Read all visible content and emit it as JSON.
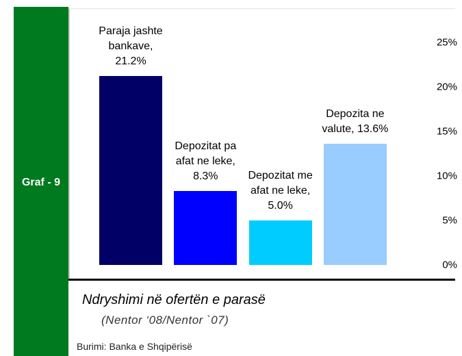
{
  "chart_data": {
    "type": "bar",
    "side_label": "Graf - 9",
    "title": "Ndryshimi në ofertën e parasë",
    "subtitle": "(Nentor ‘08/Nentor `07)",
    "source": "Burimi: Banka e Shqipërisë",
    "categories": [
      "Paraja jashte bankave,",
      "Depozitat pa afat ne leke,",
      "Depozitat me afat ne leke,",
      "Depozita ne valute,"
    ],
    "values": [
      21.2,
      8.3,
      5.0,
      13.6
    ],
    "value_labels": [
      "21.2%",
      "8.3%",
      "5.0%",
      "13.6%"
    ],
    "colors": [
      "#000066",
      "#0000ff",
      "#00ccff",
      "#99ccff"
    ],
    "ylim": [
      0,
      25
    ],
    "yticks": [
      {
        "value": 0,
        "label": "0%"
      },
      {
        "value": 5,
        "label": "5%"
      },
      {
        "value": 10,
        "label": "10%"
      },
      {
        "value": 15,
        "label": "15%"
      },
      {
        "value": 20,
        "label": "20%"
      },
      {
        "value": 25,
        "label": "25%"
      }
    ],
    "grid": false
  }
}
